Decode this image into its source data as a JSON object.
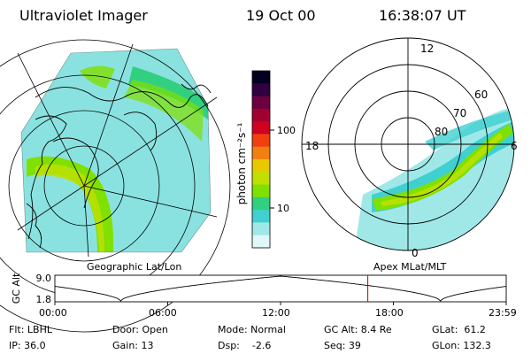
{
  "header": {
    "instrument": "Ultraviolet Imager",
    "date": "19 Oct 00",
    "time": "16:38:07 UT"
  },
  "left_panel": {
    "caption": "Geographic Lat/Lon"
  },
  "right_panel": {
    "caption": "Apex MLat/MLT",
    "mlt_labels": [
      "12",
      "18",
      "6",
      "0"
    ],
    "lat_labels": [
      "60",
      "70",
      "80"
    ]
  },
  "colorbar": {
    "unit": "photon cm⁻²s⁻¹",
    "ticks": [
      "100",
      "10"
    ],
    "colors": [
      "#000020",
      "#300040",
      "#6a0040",
      "#a00030",
      "#d00020",
      "#f04010",
      "#f08010",
      "#e8c800",
      "#c0e000",
      "#80e000",
      "#30d080",
      "#40d0d0",
      "#a0e8e8",
      "#e0f8f8"
    ]
  },
  "altitude_strip": {
    "ylabel": "GC Alt",
    "yticks": [
      "9.0",
      "1.8"
    ],
    "xticks": [
      "00:00",
      "06:00",
      "12:00",
      "18:00",
      "23:59"
    ],
    "current_time_hours": 16.64
  },
  "info": {
    "flt": "Flt: LBHL",
    "ip": "IP: 36.0",
    "door": "Door: Open",
    "gain": "Gain: 13",
    "mode": "Mode: Normal",
    "dsp": "Dsp:    -2.6",
    "gc_alt": "GC Alt: 8.4 Re",
    "seq": "Seq: 39",
    "glat": "GLat:  61.2",
    "glon": "GLon: 132.3"
  }
}
